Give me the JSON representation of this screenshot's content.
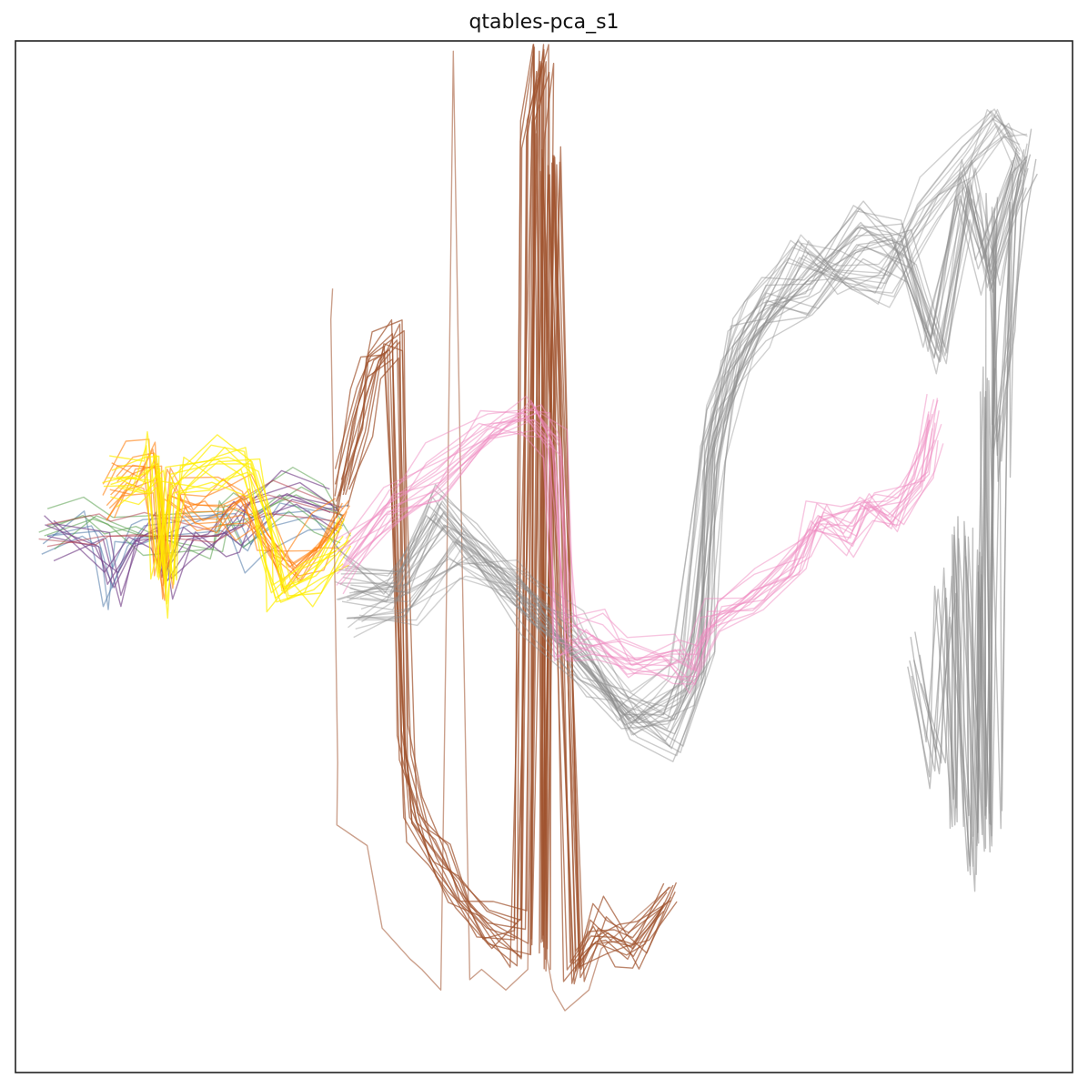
{
  "chart_data": {
    "type": "line",
    "title": "qtables-pca_s1",
    "xlabel": "",
    "ylabel": "",
    "ticks_visible": false,
    "grid": false,
    "legend": "none",
    "xlim": [
      0,
      100
    ],
    "ylim": [
      0,
      100
    ],
    "series": [
      {
        "color": "#4e79a7",
        "traces": 4,
        "opacity": 0.55,
        "points": [
          [
            3,
            52
          ],
          [
            7,
            53
          ],
          [
            8,
            52
          ],
          [
            9,
            47
          ],
          [
            10,
            51
          ],
          [
            12,
            53
          ],
          [
            20,
            54
          ],
          [
            22,
            51
          ],
          [
            24,
            53
          ],
          [
            28,
            54
          ],
          [
            31,
            53
          ]
        ]
      },
      {
        "color": "#59a14f",
        "traces": 5,
        "opacity": 0.55,
        "points": [
          [
            3,
            53
          ],
          [
            7,
            54
          ],
          [
            9,
            53
          ],
          [
            12,
            52
          ],
          [
            19,
            52
          ],
          [
            20,
            55
          ],
          [
            22,
            54
          ],
          [
            26,
            56
          ],
          [
            29,
            55
          ],
          [
            31,
            54
          ]
        ]
      },
      {
        "color": "#76448a",
        "traces": 6,
        "opacity": 0.65,
        "points": [
          [
            3,
            52
          ],
          [
            8,
            51
          ],
          [
            9,
            47
          ],
          [
            11,
            51
          ],
          [
            13,
            52
          ],
          [
            14,
            48
          ],
          [
            16,
            52
          ],
          [
            19,
            52
          ],
          [
            21,
            53
          ],
          [
            22,
            55
          ],
          [
            26,
            56
          ],
          [
            30,
            55
          ]
        ]
      },
      {
        "color": "#b23a48",
        "traces": 3,
        "opacity": 0.5,
        "points": [
          [
            3,
            51
          ],
          [
            8,
            52
          ],
          [
            9,
            52
          ],
          [
            12,
            52
          ],
          [
            19,
            52
          ],
          [
            21,
            55
          ],
          [
            24,
            56
          ],
          [
            31,
            54
          ]
        ]
      },
      {
        "color": "#ff7f0e",
        "traces": 12,
        "opacity": 0.6,
        "points": [
          [
            9,
            56
          ],
          [
            11,
            58
          ],
          [
            13,
            59
          ],
          [
            14,
            48
          ],
          [
            15,
            56
          ],
          [
            17,
            55
          ],
          [
            20,
            55
          ],
          [
            22,
            56
          ],
          [
            24,
            51
          ],
          [
            26,
            49
          ],
          [
            29,
            51
          ],
          [
            31,
            54
          ]
        ]
      },
      {
        "color": "#ffee00",
        "traces": 12,
        "opacity": 0.7,
        "points": [
          [
            9,
            57
          ],
          [
            12,
            58
          ],
          [
            13,
            59
          ],
          [
            14,
            47
          ],
          [
            15,
            58
          ],
          [
            19,
            59
          ],
          [
            22,
            59
          ],
          [
            24,
            51
          ],
          [
            25,
            47
          ],
          [
            28,
            48
          ],
          [
            31,
            52
          ]
        ]
      },
      {
        "color": "#a0522d",
        "traces": 14,
        "opacity": 0.7,
        "points": [
          [
            31,
            56
          ],
          [
            33,
            64
          ],
          [
            34,
            69
          ],
          [
            36,
            71
          ],
          [
            37,
            31
          ],
          [
            38,
            25
          ],
          [
            40,
            21
          ],
          [
            42,
            17
          ],
          [
            45,
            14
          ],
          [
            48,
            13
          ],
          [
            49,
            91
          ],
          [
            50,
            99
          ],
          [
            50,
            12
          ],
          [
            51,
            88
          ],
          [
            53,
            10
          ],
          [
            55,
            14
          ],
          [
            57,
            13
          ],
          [
            59,
            12
          ],
          [
            62,
            17
          ]
        ]
      },
      {
        "color": "#a0522d",
        "traces": 1,
        "opacity": 0.55,
        "points": [
          [
            30,
            76
          ],
          [
            30,
            73
          ],
          [
            30.5,
            30
          ],
          [
            31,
            24
          ],
          [
            33,
            22
          ],
          [
            35,
            14
          ],
          [
            37,
            11
          ],
          [
            39,
            10
          ],
          [
            40,
            8
          ],
          [
            40.5,
            40
          ],
          [
            41,
            99
          ],
          [
            42,
            71
          ],
          [
            43,
            9
          ],
          [
            44,
            10
          ],
          [
            46,
            8
          ],
          [
            48,
            10
          ],
          [
            49,
            91
          ],
          [
            50,
            11
          ],
          [
            51,
            8
          ],
          [
            52,
            6
          ],
          [
            54,
            8
          ],
          [
            56,
            12
          ],
          [
            58,
            14
          ],
          [
            62,
            18
          ]
        ]
      },
      {
        "color": "#8c8c8c",
        "traces": 18,
        "opacity": 0.45,
        "points": [
          [
            31,
            48
          ],
          [
            36,
            47
          ],
          [
            40,
            54
          ],
          [
            44,
            50
          ],
          [
            49,
            45
          ],
          [
            54,
            39
          ],
          [
            58,
            35
          ],
          [
            62,
            33
          ],
          [
            65,
            40
          ],
          [
            66,
            60
          ],
          [
            68,
            70
          ],
          [
            71,
            74
          ],
          [
            75,
            76
          ],
          [
            80,
            82
          ],
          [
            84,
            80
          ],
          [
            87,
            70
          ],
          [
            90,
            86
          ],
          [
            92,
            78
          ],
          [
            95,
            88
          ]
        ]
      },
      {
        "color": "#8c8c8c",
        "traces": 14,
        "opacity": 0.4,
        "points": [
          [
            32,
            44
          ],
          [
            37,
            45
          ],
          [
            42,
            50
          ],
          [
            47,
            47
          ],
          [
            53,
            42
          ],
          [
            58,
            34
          ],
          [
            63,
            37
          ],
          [
            66,
            62
          ],
          [
            70,
            72
          ],
          [
            74,
            79
          ],
          [
            78,
            77
          ],
          [
            82,
            76
          ],
          [
            86,
            84
          ],
          [
            90,
            88
          ],
          [
            93,
            92
          ],
          [
            95,
            89
          ]
        ]
      },
      {
        "color": "#8c8c8c",
        "traces": 8,
        "opacity": 0.55,
        "points": [
          [
            85,
            40
          ],
          [
            87,
            30
          ],
          [
            88,
            46
          ],
          [
            89,
            24
          ],
          [
            89.5,
            52
          ],
          [
            90,
            30
          ],
          [
            90.5,
            20
          ],
          [
            91,
            50
          ],
          [
            91.5,
            22
          ],
          [
            92,
            66
          ],
          [
            92.5,
            24
          ],
          [
            93,
            83
          ],
          [
            93,
            60
          ],
          [
            94,
            72
          ],
          [
            95,
            84
          ],
          [
            96,
            89
          ]
        ]
      },
      {
        "color": "#f08bc2",
        "traces": 16,
        "opacity": 0.5,
        "points": [
          [
            31,
            49
          ],
          [
            35,
            54
          ],
          [
            40,
            58
          ],
          [
            45,
            62
          ],
          [
            49,
            64
          ],
          [
            51,
            61
          ],
          [
            52,
            42
          ],
          [
            55,
            42
          ],
          [
            58,
            40
          ],
          [
            62,
            40
          ],
          [
            64,
            39
          ],
          [
            66,
            44
          ],
          [
            70,
            46
          ],
          [
            74,
            50
          ],
          [
            76,
            54
          ],
          [
            79,
            52
          ],
          [
            81,
            55
          ],
          [
            83,
            54
          ],
          [
            86,
            58
          ],
          [
            87,
            63
          ]
        ]
      }
    ]
  }
}
